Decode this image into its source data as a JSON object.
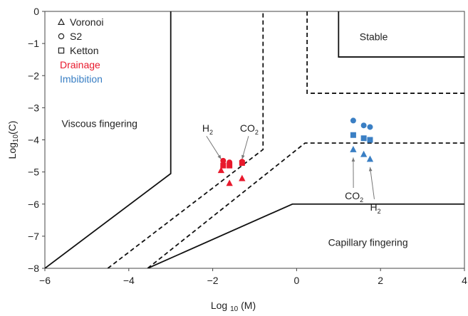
{
  "chart_data": {
    "type": "scatter",
    "title": "",
    "xlabel": "Log 10 (M)",
    "ylabel": "Log10(C)",
    "xlim": [
      -6,
      4
    ],
    "ylim": [
      -8,
      0
    ],
    "xticks": [
      -6,
      -4,
      -2,
      0,
      2,
      4
    ],
    "yticks": [
      0,
      -1,
      -2,
      -3,
      -4,
      -5,
      -6,
      -7,
      -8
    ],
    "grid": false,
    "legend": {
      "placement": "top-left",
      "markers": [
        {
          "label": "Voronoi",
          "marker": "triangle"
        },
        {
          "label": "S2",
          "marker": "circle"
        },
        {
          "label": "Ketton",
          "marker": "square"
        }
      ],
      "colors": [
        {
          "label": "Drainage",
          "color": "#e8192c"
        },
        {
          "label": "Imbibition",
          "color": "#3a7fc4"
        }
      ]
    },
    "regions": [
      {
        "label": "Viscous fingering",
        "x": -5.6,
        "y": -3.6
      },
      {
        "label": "Stable",
        "x": 1.5,
        "y": -0.9
      },
      {
        "label": "Capillary fingering",
        "x": 0.75,
        "y": -7.3
      }
    ],
    "boundaries": [
      {
        "style": "solid",
        "points": [
          [
            -6,
            -8
          ],
          [
            -3,
            -5.05
          ],
          [
            -3,
            0
          ]
        ]
      },
      {
        "style": "solid",
        "points": [
          [
            -3.55,
            -8
          ],
          [
            -0.1,
            -6
          ],
          [
            4,
            -6
          ]
        ]
      },
      {
        "style": "solid",
        "points": [
          [
            1,
            0
          ],
          [
            1,
            -1.42
          ],
          [
            4,
            -1.42
          ]
        ]
      },
      {
        "style": "dashed",
        "points": [
          [
            -4.5,
            -8
          ],
          [
            -0.8,
            -4.3
          ],
          [
            -0.8,
            0
          ]
        ]
      },
      {
        "style": "dashed",
        "points": [
          [
            -3.55,
            -8
          ],
          [
            0.2,
            -4.1
          ],
          [
            4,
            -4.1
          ]
        ]
      },
      {
        "style": "dashed",
        "points": [
          [
            0.25,
            0
          ],
          [
            0.25,
            -2.55
          ],
          [
            4,
            -2.55
          ]
        ]
      }
    ],
    "series": [
      {
        "name": "Voronoi",
        "marker": "triangle",
        "color": "#e8192c",
        "x": [
          -1.8,
          -1.6,
          -1.3
        ],
        "y": [
          -4.95,
          -5.35,
          -5.2
        ]
      },
      {
        "name": "S2",
        "marker": "circle",
        "color": "#e8192c",
        "x": [
          -1.75,
          -1.6,
          -1.3
        ],
        "y": [
          -4.65,
          -4.7,
          -4.68
        ]
      },
      {
        "name": "Ketton",
        "marker": "square",
        "color": "#e8192c",
        "x": [
          -1.75,
          -1.6,
          -1.3
        ],
        "y": [
          -4.8,
          -4.8,
          -4.72
        ]
      },
      {
        "name": "Voronoi",
        "marker": "triangle",
        "color": "#3a7fc4",
        "x": [
          1.35,
          1.6,
          1.75
        ],
        "y": [
          -4.3,
          -4.45,
          -4.6
        ]
      },
      {
        "name": "S2",
        "marker": "circle",
        "color": "#3a7fc4",
        "x": [
          1.35,
          1.6,
          1.75
        ],
        "y": [
          -3.4,
          -3.55,
          -3.6
        ]
      },
      {
        "name": "Ketton",
        "marker": "square",
        "color": "#3a7fc4",
        "x": [
          1.35,
          1.6,
          1.75
        ],
        "y": [
          -3.85,
          -3.95,
          -4.0
        ]
      }
    ],
    "annotations": [
      {
        "main": "H",
        "sub": "2",
        "x": -2.25,
        "y": -3.75,
        "arrow_to": [
          -1.8,
          -4.6
        ]
      },
      {
        "main": "CO",
        "sub": "2",
        "x": -1.35,
        "y": -3.75,
        "arrow_to": [
          -1.3,
          -4.6
        ]
      },
      {
        "main": "CO",
        "sub": "2",
        "x": 1.15,
        "y": -5.85,
        "arrow_to": [
          1.35,
          -4.55
        ]
      },
      {
        "main": "H",
        "sub": "2",
        "x": 1.75,
        "y": -6.2,
        "arrow_to": [
          1.75,
          -4.85
        ]
      }
    ]
  }
}
